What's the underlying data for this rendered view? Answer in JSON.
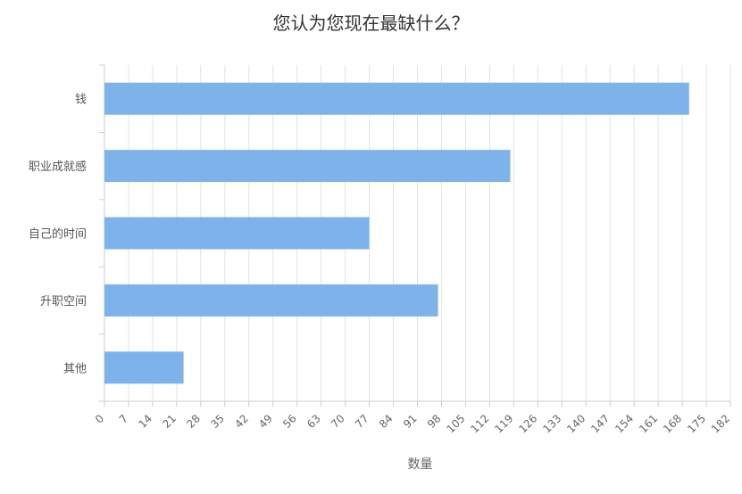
{
  "chart_data": {
    "type": "bar",
    "orientation": "horizontal",
    "title": "您认为您现在最缺什么？",
    "xlabel": "数量",
    "ylabel": "",
    "categories": [
      "钱",
      "职业成就感",
      "自己的时间",
      "升职空间",
      "其他"
    ],
    "values": [
      170,
      118,
      77,
      97,
      23
    ],
    "xlim": [
      0,
      182
    ],
    "xticks": [
      0,
      7,
      14,
      21,
      28,
      35,
      42,
      49,
      56,
      63,
      70,
      77,
      84,
      91,
      98,
      105,
      112,
      119,
      126,
      133,
      140,
      147,
      154,
      161,
      168,
      175,
      182
    ],
    "grid": true,
    "bar_color": "#7db3ea"
  }
}
